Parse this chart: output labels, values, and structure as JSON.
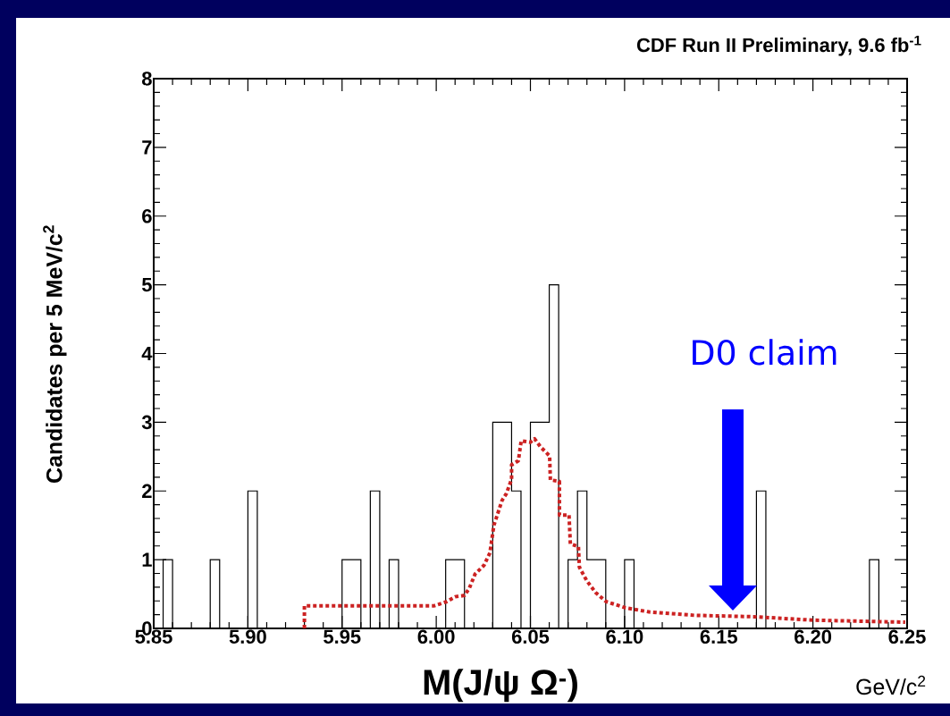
{
  "chart_data": {
    "type": "histogram",
    "title": "CDF Run II Preliminary, 9.6 fb$^{-1}$",
    "xlabel": "M(J/ψ Ω$^{-}$)",
    "ylabel": "Candidates per 5 MeV/c$^{2}$",
    "color": "#000000",
    "bins": [
      5.85,
      5.855,
      5.86,
      5.865,
      5.87,
      5.875,
      5.88,
      5.885,
      5.89,
      5.895,
      5.9,
      5.905,
      5.91,
      5.915,
      5.92,
      5.925,
      5.93,
      5.935,
      5.94,
      5.945,
      5.95,
      5.955,
      5.96,
      5.965,
      5.97,
      5.975,
      5.98,
      5.985,
      5.99,
      5.995,
      6.0,
      6.005,
      6.01,
      6.015,
      6.02,
      6.025,
      6.03,
      6.035,
      6.04,
      6.045,
      6.05,
      6.055,
      6.06,
      6.065,
      6.07,
      6.075,
      6.08,
      6.085,
      6.09,
      6.095,
      6.1,
      6.105,
      6.11,
      6.115,
      6.12,
      6.125,
      6.13,
      6.135,
      6.14,
      6.145,
      6.15,
      6.155,
      6.16,
      6.165,
      6.17,
      6.175,
      6.18,
      6.185,
      6.19,
      6.195,
      6.2,
      6.205,
      6.21,
      6.215,
      6.22,
      6.225,
      6.23,
      6.235,
      6.24,
      6.245,
      6.25
    ],
    "values": [
      0,
      1,
      0,
      0,
      0,
      0,
      1,
      0,
      0,
      0,
      2,
      0,
      0,
      0,
      0,
      0,
      0,
      0,
      0,
      0,
      1,
      1,
      0,
      2,
      0,
      1,
      0,
      0,
      0,
      0,
      0,
      1,
      1,
      0,
      0,
      0,
      3,
      3,
      2,
      0,
      3,
      3,
      5,
      0,
      1,
      2,
      1,
      1,
      0,
      0,
      1,
      0,
      0,
      0,
      0,
      0,
      0,
      0,
      0,
      0,
      0,
      0,
      0,
      0,
      2,
      0,
      0,
      0,
      0,
      0,
      0,
      0,
      0,
      0,
      0,
      0,
      1,
      0,
      0,
      0
    ],
    "series": [
      {
        "type": "line",
        "color": "#cc2222",
        "line_style": "dotted",
        "x": [
          5.93,
          5.93,
          5.999,
          6.0056,
          6.01,
          6.015,
          6.0175,
          6.0206,
          6.0254,
          6.0285,
          6.0306,
          6.0349,
          6.0372,
          6.04,
          6.04,
          6.0436,
          6.0451,
          6.05,
          6.0522,
          6.0554,
          6.0602,
          6.0606,
          6.0654,
          6.0654,
          6.0705,
          6.0712,
          6.0755,
          6.076,
          6.08,
          6.0847,
          6.0902,
          6.1005,
          6.113,
          6.137,
          6.1685,
          6.2,
          6.249
        ],
        "values": [
          0,
          0.33,
          0.33,
          0.39,
          0.46,
          0.48,
          0.58,
          0.79,
          0.92,
          1.1,
          1.5,
          1.86,
          1.96,
          2.17,
          2.38,
          2.44,
          2.73,
          2.71,
          2.76,
          2.64,
          2.51,
          2.16,
          2.14,
          1.65,
          1.65,
          1.23,
          1.19,
          0.89,
          0.69,
          0.52,
          0.39,
          0.3,
          0.24,
          0.19,
          0.17,
          0.12,
          0.09
        ]
      }
    ],
    "xlim": [
      5.85,
      6.25
    ],
    "ylim": [
      0,
      8
    ],
    "xticks": [
      5.85,
      {
        "value": 5.9,
        "label": "5.90"
      },
      5.95,
      {
        "value": 6.0,
        "label": "6.00"
      },
      6.05,
      {
        "value": 6.1,
        "label": "6.10"
      },
      6.15,
      {
        "value": 6.2,
        "label": "6.20"
      },
      6.25
    ],
    "yticks": [
      0,
      1,
      2,
      3,
      4,
      5,
      6,
      7,
      8
    ],
    "annotations": [
      "D0 claim",
      "GeV/c$^{2}$"
    ]
  }
}
